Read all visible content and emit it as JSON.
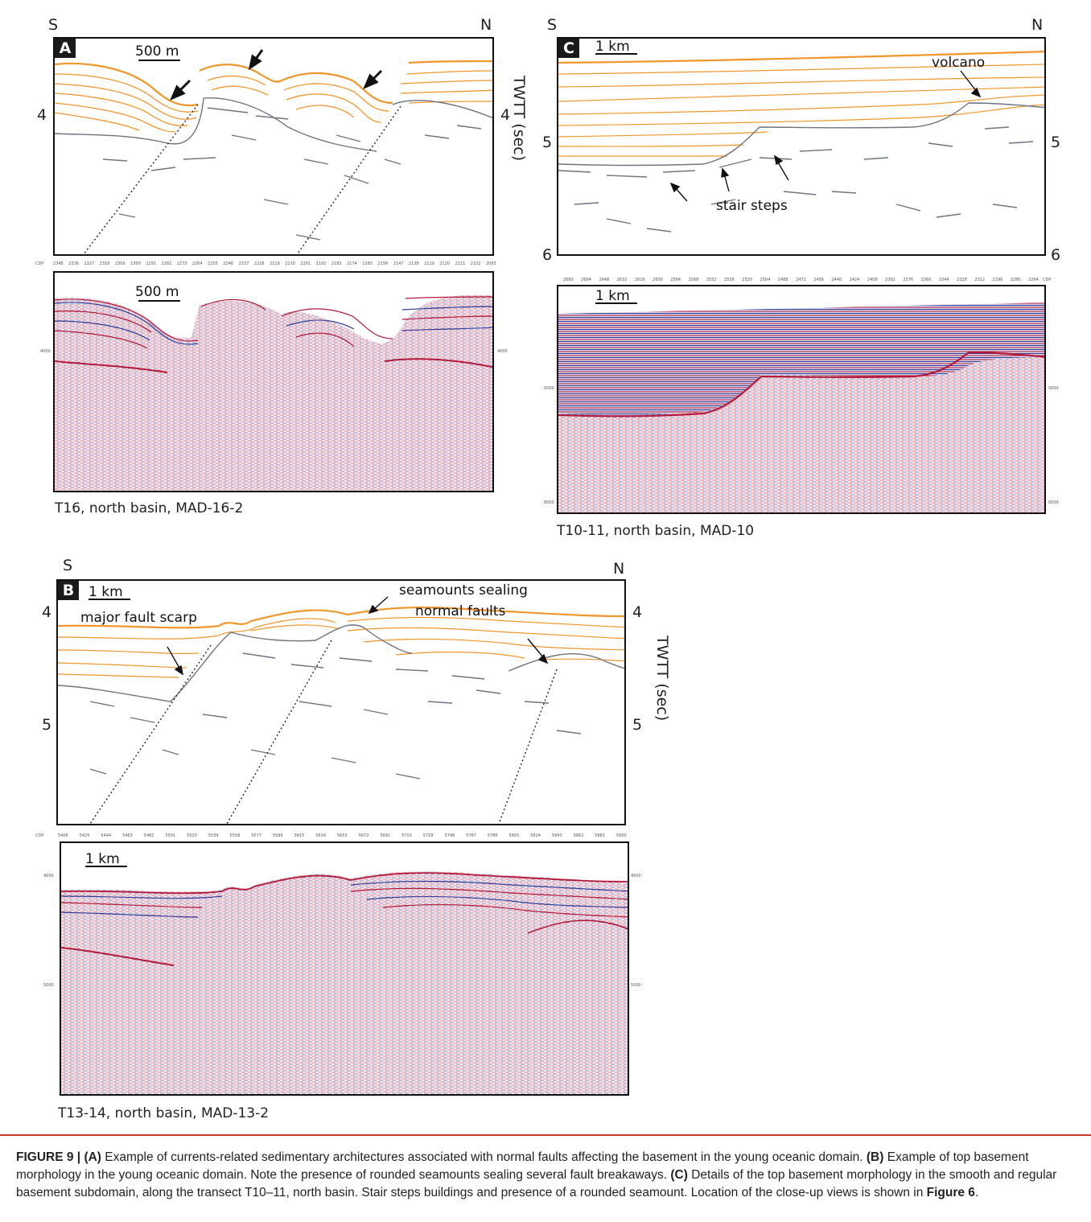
{
  "panel_a": {
    "letter": "A",
    "south": "S",
    "north": "N",
    "scale_label": "500 m",
    "depth_left": "4",
    "depth_right": "4",
    "cdp_label": "CDP",
    "cdp_values": [
      "2348",
      "2336",
      "2327",
      "2318",
      "2309",
      "2300",
      "2291",
      "2282",
      "2273",
      "2264",
      "2255",
      "2246",
      "2237",
      "2228",
      "2219",
      "2210",
      "2201",
      "2192",
      "2183",
      "2174",
      "2165",
      "2156",
      "2147",
      "2138",
      "2129",
      "2120",
      "2111",
      "2102",
      "2093"
    ],
    "seismic_scale_label": "500 m",
    "seismic_tick_left": "4000",
    "seismic_tick_right": "4000",
    "caption": "T16, north basin, MAD-16-2"
  },
  "panel_c": {
    "letter": "C",
    "south": "S",
    "north": "N",
    "scale_label": "1 km",
    "volcano": "volcano",
    "stair_steps": "stair steps",
    "depth_5_right": "5",
    "depth_6_left": "6",
    "depth_6_right": "6",
    "depth_5_left": "5",
    "twtt_label": "TWTT (sec)",
    "cdp_label": "CDP",
    "cdp_values": [
      "2680",
      "2664",
      "2648",
      "2632",
      "2616",
      "2600",
      "2584",
      "2568",
      "2552",
      "2536",
      "2520",
      "2504",
      "2488",
      "2472",
      "2456",
      "2440",
      "2424",
      "2408",
      "2392",
      "2376",
      "2360",
      "2344",
      "2328",
      "2312",
      "2296",
      "2280",
      "2264"
    ],
    "seismic_scale_label": "1 km",
    "seismic_tick_5000_left": "5000",
    "seismic_tick_5000_right": "5000",
    "seismic_tick_6000_left": "6000",
    "seismic_tick_6000_right": "6000",
    "caption": "T10-11, north basin, MAD-10"
  },
  "panel_b": {
    "letter": "B",
    "south": "S",
    "north": "N",
    "scale_label": "1 km",
    "fault_scarp": "major fault scarp",
    "seamounts_1": "seamounts sealing",
    "seamounts_2": "normal faults",
    "depth_4_left": "4",
    "depth_4_right": "4",
    "depth_5_left": "5",
    "depth_5_right": "5",
    "twtt_label": "TWTT (sec)",
    "cdp_label": "CDP",
    "cdp_values": [
      "5406",
      "5425",
      "5444",
      "5463",
      "5482",
      "5501",
      "5520",
      "5539",
      "5558",
      "5577",
      "5596",
      "5615",
      "5634",
      "5653",
      "5672",
      "5691",
      "5710",
      "5729",
      "5748",
      "5767",
      "5786",
      "5805",
      "5824",
      "5843",
      "5862",
      "5881",
      "5900"
    ],
    "seismic_scale_label": "1 km",
    "seismic_tick_4000_left": "4000",
    "seismic_tick_4000_right": "4000",
    "seismic_tick_5000_left": "5000",
    "seismic_tick_5000_right": "5000",
    "caption": "T13-14, north basin, MAD-13-2"
  },
  "figure_caption": {
    "label": "FIGURE 9 |",
    "a_tag": "(A)",
    "a_text": "Example of currents-related sedimentary architectures associated with normal faults affecting the basement in the young oceanic domain.",
    "b_tag": "(B)",
    "b_text": "Example of top basement morphology in the young oceanic domain. Note the presence of rounded seamounts sealing several fault breakaways.",
    "c_tag": "(C)",
    "c_text": "Details of the top basement morphology in the smooth and regular basement subdomain, along the transect T10–11, north basin. Stair steps buildings and presence of a rounded seamount. Location of the close-up views is shown in",
    "fig_ref": "Figure 6",
    "end": "."
  },
  "colors": {
    "orange": "#f0962a",
    "gray_line": "#6e7480",
    "frame": "#111111",
    "caption_rule": "#c0392b"
  }
}
